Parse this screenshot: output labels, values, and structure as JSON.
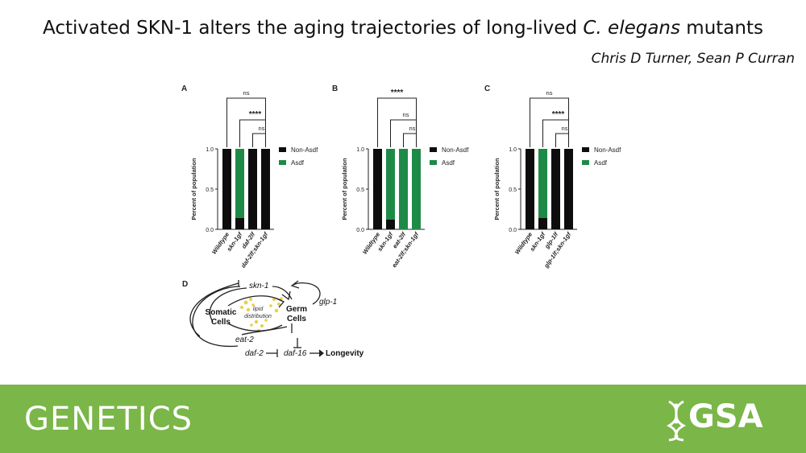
{
  "header": {
    "title_plain": "Activated SKN-1 alters the aging trajectories of long-lived ",
    "title_italic": "C. elegans",
    "title_end": " mutants",
    "authors": "Chris D Turner, Sean P Curran"
  },
  "footer": {
    "journal": "GENETICS",
    "logo_text": "GSA"
  },
  "colors": {
    "non_asdf": "#0d0d0d",
    "asdf": "#1e8a48",
    "footer": "#7ab648",
    "diagram_dots": "#e8d04a"
  },
  "chart_data": [
    {
      "panel": "A",
      "type": "bar",
      "stacked": true,
      "ylabel": "Percent of population",
      "ylim": [
        0,
        1.0
      ],
      "yticks": [
        "0.0",
        "0.5",
        "1.0"
      ],
      "categories": [
        "Wildtype",
        "skn-1gf",
        "daf-2lf",
        "daf-2lf;skn-1gf"
      ],
      "series": [
        {
          "name": "Non-Asdf",
          "values": [
            1.0,
            0.14,
            1.0,
            1.0
          ]
        },
        {
          "name": "Asdf",
          "values": [
            0.0,
            0.86,
            0.0,
            0.0
          ]
        }
      ],
      "legend": [
        "Non-Asdf",
        "Asdf"
      ],
      "legend_position": "right",
      "comparisons": [
        {
          "from": 0,
          "to": 3,
          "label": "ns"
        },
        {
          "from": 1,
          "to": 3,
          "label": "****"
        },
        {
          "from": 2,
          "to": 3,
          "label": "ns"
        }
      ]
    },
    {
      "panel": "B",
      "type": "bar",
      "stacked": true,
      "ylabel": "Percent of population",
      "ylim": [
        0,
        1.0
      ],
      "yticks": [
        "0.0",
        "0.5",
        "1.0"
      ],
      "categories": [
        "Wildtype",
        "skn-1gf",
        "eat-2lf",
        "eat-2lf;skn-1gf"
      ],
      "series": [
        {
          "name": "Non-Asdf",
          "values": [
            1.0,
            0.12,
            0.0,
            0.0
          ]
        },
        {
          "name": "Asdf",
          "values": [
            0.0,
            0.88,
            1.0,
            1.0
          ]
        }
      ],
      "legend": [
        "Non-Asdf",
        "Asdf"
      ],
      "legend_position": "right",
      "comparisons": [
        {
          "from": 0,
          "to": 3,
          "label": "****"
        },
        {
          "from": 1,
          "to": 3,
          "label": "ns"
        },
        {
          "from": 2,
          "to": 3,
          "label": "ns"
        }
      ]
    },
    {
      "panel": "C",
      "type": "bar",
      "stacked": true,
      "ylabel": "Percent of population",
      "ylim": [
        0,
        1.0
      ],
      "yticks": [
        "0.0",
        "0.5",
        "1.0"
      ],
      "categories": [
        "Wildtype",
        "skn-1gf",
        "glp-1lf",
        "glp-1lf;skn-1gf"
      ],
      "series": [
        {
          "name": "Non-Asdf",
          "values": [
            1.0,
            0.14,
            1.0,
            1.0
          ]
        },
        {
          "name": "Asdf",
          "values": [
            0.0,
            0.86,
            0.0,
            0.0
          ]
        }
      ],
      "legend": [
        "Non-Asdf",
        "Asdf"
      ],
      "legend_position": "right",
      "comparisons": [
        {
          "from": 0,
          "to": 3,
          "label": "ns"
        },
        {
          "from": 1,
          "to": 3,
          "label": "****"
        },
        {
          "from": 2,
          "to": 3,
          "label": "ns"
        }
      ]
    }
  ],
  "diagram": {
    "panel": "D",
    "skn1": "skn-1",
    "somatic_1": "Somatic",
    "somatic_2": "Cells",
    "lipid_1": "lipid",
    "lipid_2": "distribution",
    "germ_1": "Germ",
    "germ_2": "Cells",
    "glp1": "glp-1",
    "eat2": "eat-2",
    "daf2": "daf-2",
    "daf16": "daf-16",
    "longevity": "Longevity"
  }
}
